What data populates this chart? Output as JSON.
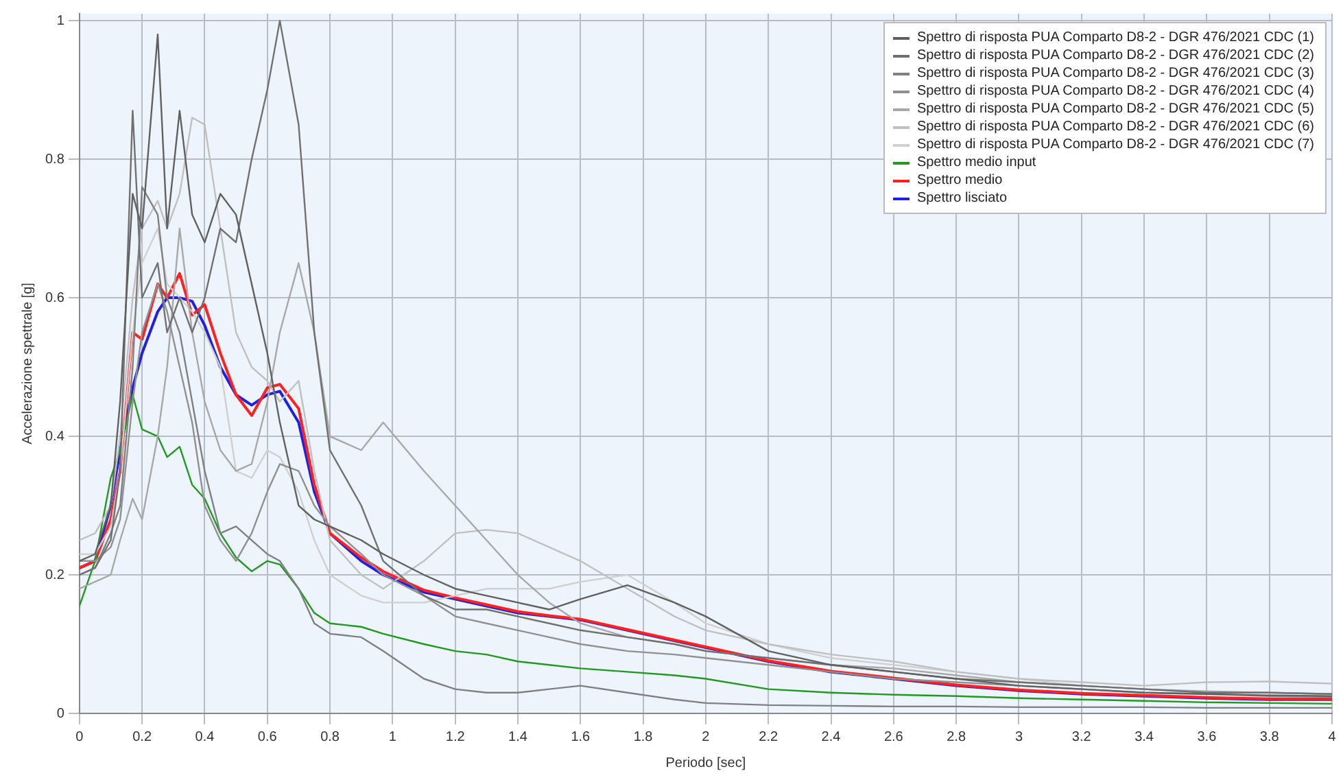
{
  "chart_data": {
    "type": "line",
    "xlabel": "Periodo [sec]",
    "ylabel": "Accelerazione spettrale [g]",
    "x": [
      0,
      0.05,
      0.1,
      0.13,
      0.17,
      0.2,
      0.25,
      0.28,
      0.32,
      0.36,
      0.4,
      0.45,
      0.5,
      0.55,
      0.6,
      0.64,
      0.7,
      0.75,
      0.8,
      0.9,
      0.97,
      1.1,
      1.2,
      1.3,
      1.4,
      1.5,
      1.6,
      1.75,
      1.9,
      2.0,
      2.2,
      2.4,
      2.6,
      2.8,
      3.0,
      3.2,
      3.4,
      3.6,
      3.8,
      4.0
    ],
    "xlim": [
      0,
      4
    ],
    "xticks": [
      0,
      0.2,
      0.4,
      0.6,
      0.8,
      1,
      1.2,
      1.4,
      1.6,
      1.8,
      2,
      2.2,
      2.4,
      2.6,
      2.8,
      3,
      3.2,
      3.4,
      3.6,
      3.8,
      4
    ],
    "ylim": [
      0,
      1.01
    ],
    "yticks": [
      0,
      0.2,
      0.4,
      0.6,
      0.8,
      1
    ],
    "grid": true,
    "legend": "top right",
    "marker": "none",
    "line_style": "solid",
    "series": [
      {
        "name": "Spettro di risposta PUA Comparto D8-2 - DGR 476/2021 CDC (1)",
        "color": "#606060",
        "values": [
          0.22,
          0.23,
          0.3,
          0.45,
          0.75,
          0.7,
          0.98,
          0.7,
          0.87,
          0.72,
          0.68,
          0.75,
          0.72,
          0.62,
          0.52,
          0.42,
          0.3,
          0.28,
          0.27,
          0.25,
          0.23,
          0.2,
          0.18,
          0.17,
          0.16,
          0.15,
          0.165,
          0.185,
          0.16,
          0.14,
          0.09,
          0.07,
          0.06,
          0.05,
          0.04,
          0.035,
          0.03,
          0.028,
          0.026,
          0.025
        ]
      },
      {
        "name": "Spettro di risposta PUA Comparto D8-2 - DGR 476/2021 CDC (2)",
        "color": "#707070",
        "values": [
          0.2,
          0.21,
          0.25,
          0.35,
          0.87,
          0.6,
          0.65,
          0.55,
          0.6,
          0.55,
          0.6,
          0.7,
          0.68,
          0.8,
          0.9,
          1.0,
          0.85,
          0.55,
          0.38,
          0.3,
          0.22,
          0.17,
          0.15,
          0.15,
          0.14,
          0.13,
          0.12,
          0.11,
          0.1,
          0.09,
          0.08,
          0.07,
          0.06,
          0.05,
          0.045,
          0.04,
          0.035,
          0.03,
          0.03,
          0.028
        ]
      },
      {
        "name": "Spettro di risposta PUA Comparto D8-2 - DGR 476/2021 CDC (3)",
        "color": "#808080",
        "values": [
          0.2,
          0.21,
          0.26,
          0.3,
          0.5,
          0.76,
          0.72,
          0.6,
          0.55,
          0.45,
          0.35,
          0.26,
          0.27,
          0.25,
          0.23,
          0.22,
          0.18,
          0.13,
          0.115,
          0.11,
          0.09,
          0.05,
          0.035,
          0.03,
          0.03,
          0.035,
          0.04,
          0.03,
          0.02,
          0.015,
          0.012,
          0.011,
          0.01,
          0.01,
          0.009,
          0.009,
          0.009,
          0.008,
          0.008,
          0.008
        ]
      },
      {
        "name": "Spettro di risposta PUA Comparto D8-2 - DGR 476/2021 CDC (4)",
        "color": "#909090",
        "values": [
          0.22,
          0.22,
          0.24,
          0.28,
          0.45,
          0.55,
          0.62,
          0.58,
          0.5,
          0.42,
          0.3,
          0.25,
          0.22,
          0.26,
          0.32,
          0.36,
          0.35,
          0.3,
          0.27,
          0.23,
          0.2,
          0.17,
          0.14,
          0.13,
          0.12,
          0.11,
          0.1,
          0.09,
          0.085,
          0.08,
          0.07,
          0.06,
          0.05,
          0.045,
          0.04,
          0.035,
          0.03,
          0.028,
          0.025,
          0.024
        ]
      },
      {
        "name": "Spettro di risposta PUA Comparto D8-2 - DGR 476/2021 CDC (5)",
        "color": "#a8a8a8",
        "values": [
          0.18,
          0.19,
          0.2,
          0.25,
          0.31,
          0.28,
          0.4,
          0.5,
          0.7,
          0.55,
          0.45,
          0.38,
          0.35,
          0.36,
          0.45,
          0.55,
          0.65,
          0.55,
          0.4,
          0.38,
          0.42,
          0.35,
          0.3,
          0.25,
          0.2,
          0.16,
          0.13,
          0.11,
          0.1,
          0.09,
          0.08,
          0.07,
          0.065,
          0.055,
          0.045,
          0.04,
          0.035,
          0.032,
          0.03,
          0.028
        ]
      },
      {
        "name": "Spettro di risposta PUA Comparto D8-2 - DGR 476/2021 CDC (6)",
        "color": "#c0c0c0",
        "values": [
          0.25,
          0.26,
          0.3,
          0.4,
          0.6,
          0.7,
          0.74,
          0.7,
          0.75,
          0.86,
          0.85,
          0.7,
          0.55,
          0.5,
          0.48,
          0.45,
          0.48,
          0.35,
          0.25,
          0.2,
          0.18,
          0.22,
          0.26,
          0.265,
          0.26,
          0.24,
          0.22,
          0.18,
          0.14,
          0.12,
          0.1,
          0.085,
          0.075,
          0.06,
          0.05,
          0.045,
          0.04,
          0.045,
          0.046,
          0.043
        ]
      },
      {
        "name": "Spettro di risposta PUA Comparto D8-2 - DGR 476/2021 CDC (7)",
        "color": "#d0d0d0",
        "values": [
          0.23,
          0.23,
          0.27,
          0.35,
          0.55,
          0.65,
          0.7,
          0.62,
          0.6,
          0.58,
          0.55,
          0.5,
          0.35,
          0.34,
          0.38,
          0.37,
          0.32,
          0.25,
          0.2,
          0.17,
          0.16,
          0.16,
          0.17,
          0.18,
          0.18,
          0.18,
          0.19,
          0.2,
          0.16,
          0.13,
          0.1,
          0.08,
          0.07,
          0.06,
          0.05,
          0.04,
          0.035,
          0.03,
          0.03,
          0.028
        ]
      },
      {
        "name": "Spettro medio input",
        "color": "#1f9a1f",
        "values": [
          0.155,
          0.22,
          0.34,
          0.38,
          0.46,
          0.41,
          0.4,
          0.37,
          0.385,
          0.33,
          0.31,
          0.26,
          0.225,
          0.205,
          0.22,
          0.215,
          0.18,
          0.145,
          0.13,
          0.125,
          0.115,
          0.1,
          0.09,
          0.085,
          0.075,
          0.07,
          0.065,
          0.06,
          0.055,
          0.05,
          0.035,
          0.03,
          0.027,
          0.025,
          0.022,
          0.02,
          0.018,
          0.016,
          0.015,
          0.014
        ]
      },
      {
        "name": "Spettro medio",
        "color": "#ff2020",
        "values": [
          0.21,
          0.22,
          0.28,
          0.35,
          0.55,
          0.54,
          0.62,
          0.6,
          0.635,
          0.575,
          0.59,
          0.52,
          0.46,
          0.43,
          0.47,
          0.475,
          0.44,
          0.33,
          0.26,
          0.225,
          0.205,
          0.178,
          0.167,
          0.157,
          0.147,
          0.141,
          0.136,
          0.121,
          0.106,
          0.096,
          0.076,
          0.061,
          0.051,
          0.041,
          0.034,
          0.029,
          0.026,
          0.023,
          0.021,
          0.021
        ]
      },
      {
        "name": "Spettro lisciato",
        "color": "#2020e0",
        "values": [
          0.21,
          0.22,
          0.3,
          0.38,
          0.47,
          0.52,
          0.58,
          0.6,
          0.6,
          0.595,
          0.56,
          0.5,
          0.46,
          0.445,
          0.46,
          0.465,
          0.42,
          0.32,
          0.26,
          0.22,
          0.2,
          0.175,
          0.165,
          0.155,
          0.145,
          0.14,
          0.135,
          0.12,
          0.105,
          0.095,
          0.075,
          0.06,
          0.05,
          0.04,
          0.033,
          0.028,
          0.025,
          0.022,
          0.02,
          0.02
        ]
      }
    ]
  }
}
